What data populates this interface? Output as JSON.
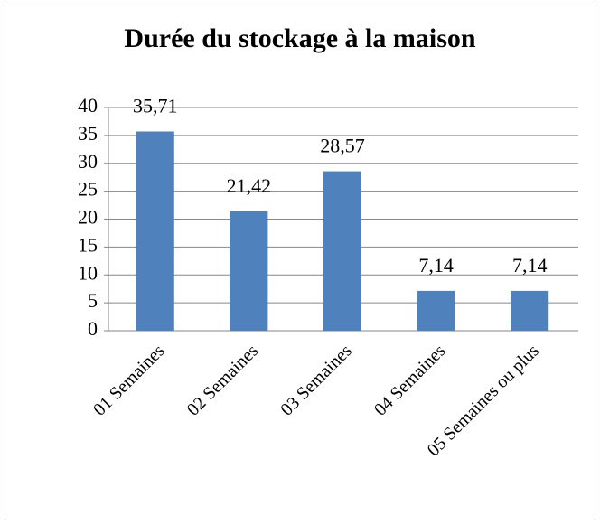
{
  "chart_data": {
    "type": "bar",
    "title": "Durée du stockage à la maison",
    "categories": [
      "01 Semaines",
      "02 Semaines",
      "03 Semaines",
      "04 Semaines",
      "05 Semaines ou plus"
    ],
    "values": [
      35.71,
      21.42,
      28.57,
      7.14,
      7.14
    ],
    "value_labels": [
      "35,71",
      "21,42",
      "28,57",
      "7,14",
      "7,14"
    ],
    "color": "#4f81bd",
    "ylim": [
      0,
      40
    ],
    "yticks": [
      0,
      5,
      10,
      15,
      20,
      25,
      30,
      35,
      40
    ],
    "grid": true
  }
}
